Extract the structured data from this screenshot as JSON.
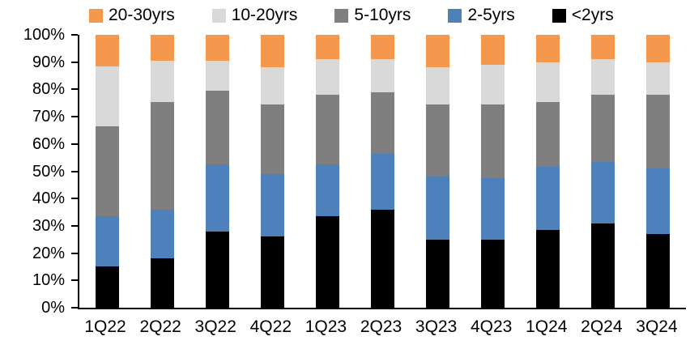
{
  "chart_data": {
    "type": "bar",
    "variant": "stacked-100-percent",
    "title": "",
    "xlabel": "",
    "ylabel": "",
    "categories": [
      "1Q22",
      "2Q22",
      "3Q22",
      "4Q22",
      "1Q23",
      "2Q23",
      "3Q23",
      "4Q23",
      "1Q24",
      "2Q24",
      "3Q24"
    ],
    "series": [
      {
        "name": "<2yrs",
        "color": "#000000",
        "values": [
          15.0,
          18.0,
          28.0,
          26.0,
          33.5,
          36.0,
          25.0,
          25.0,
          28.5,
          31.0,
          27.0
        ]
      },
      {
        "name": "2-5yrs",
        "color": "#4E81BC",
        "values": [
          18.5,
          18.0,
          24.5,
          23.0,
          19.0,
          20.5,
          23.0,
          22.5,
          23.0,
          22.5,
          24.0
        ]
      },
      {
        "name": "5-10yrs",
        "color": "#7F7F7F",
        "values": [
          33.0,
          39.5,
          27.0,
          25.5,
          25.5,
          22.5,
          26.5,
          27.0,
          24.0,
          24.5,
          27.0
        ]
      },
      {
        "name": "10-20yrs",
        "color": "#D9D9D9",
        "values": [
          22.0,
          15.0,
          11.0,
          13.5,
          13.0,
          12.0,
          13.5,
          14.5,
          14.5,
          13.0,
          12.0
        ]
      },
      {
        "name": "20-30yrs",
        "color": "#F4984D",
        "values": [
          11.5,
          9.5,
          9.5,
          12.0,
          9.0,
          9.0,
          12.0,
          11.0,
          10.0,
          9.0,
          10.0
        ]
      }
    ],
    "stack_order_bottom_to_top": [
      "<2yrs",
      "2-5yrs",
      "5-10yrs",
      "10-20yrs",
      "20-30yrs"
    ],
    "legend": {
      "position": "top",
      "order": [
        "20-30yrs",
        "10-20yrs",
        "5-10yrs",
        "2-5yrs",
        "<2yrs"
      ]
    },
    "y_axis": {
      "min": 0,
      "max": 100,
      "unit": "%",
      "tick_step": 10,
      "tick_labels": [
        "0%",
        "10%",
        "20%",
        "30%",
        "40%",
        "50%",
        "60%",
        "70%",
        "80%",
        "90%",
        "100%"
      ]
    },
    "grid": "off",
    "axis_color": "#000000",
    "text_color": "#000000",
    "background_color": "#FFFFFF"
  }
}
